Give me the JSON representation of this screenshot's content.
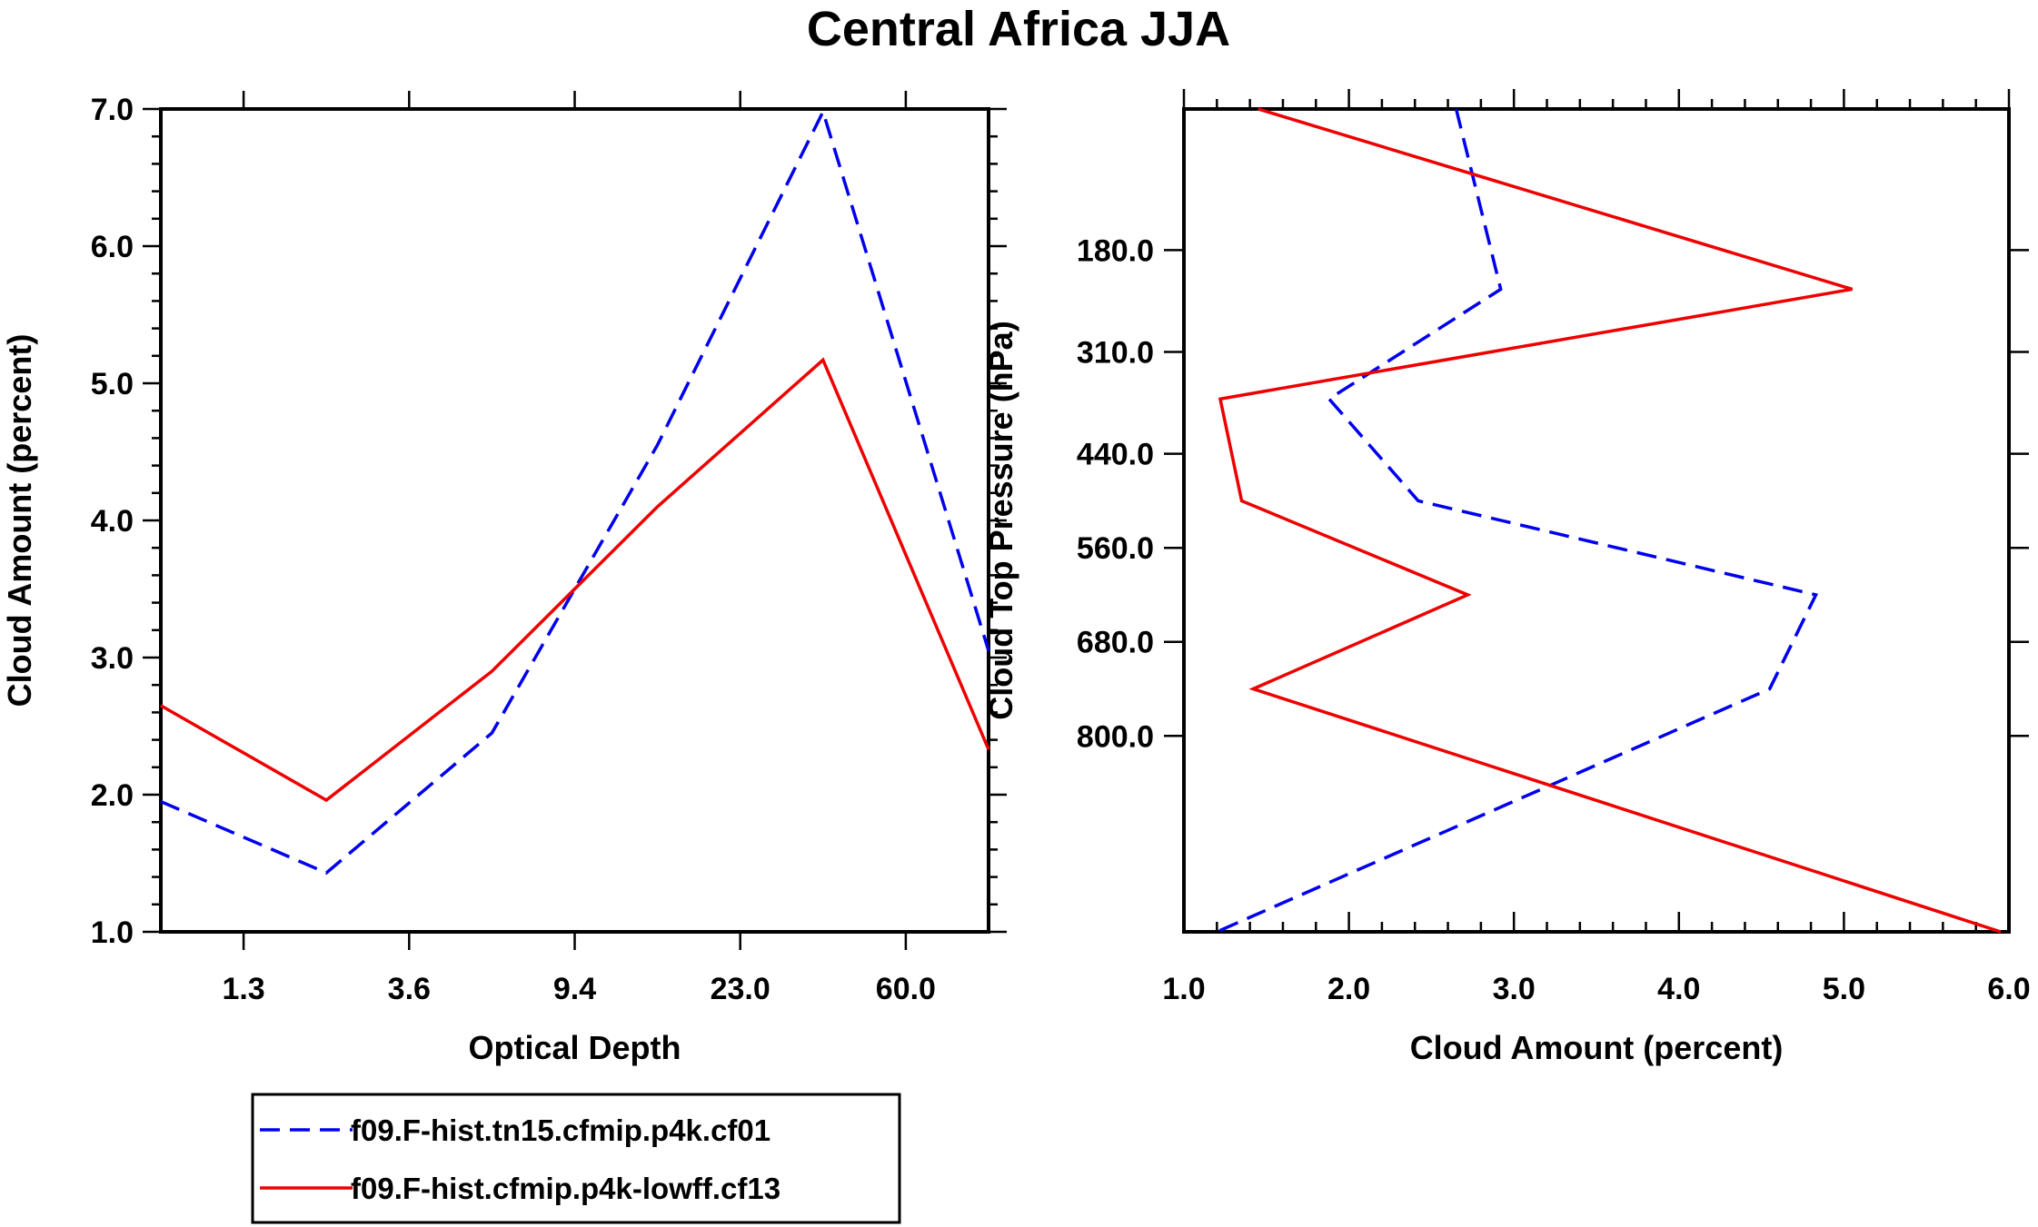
{
  "figure_title": "Central Africa JJA",
  "chart_data": [
    {
      "type": "line",
      "title": "",
      "xlabel": "Optical Depth",
      "ylabel": "Cloud Amount (percent)",
      "x_scale": "category-index",
      "xlim": [
        0.5,
        5.5
      ],
      "ylim": [
        1.0,
        7.0
      ],
      "x_ticks": [
        1,
        2,
        3,
        4,
        5
      ],
      "x_tick_labels": [
        "1.3",
        "3.6",
        "9.4",
        "23.0",
        "60.0"
      ],
      "y_ticks": [
        1.0,
        2.0,
        3.0,
        4.0,
        5.0,
        6.0,
        7.0
      ],
      "y_tick_labels": [
        "1.0",
        "2.0",
        "3.0",
        "4.0",
        "5.0",
        "6.0",
        "7.0"
      ],
      "x": [
        0.5,
        1.5,
        2.5,
        3.5,
        4.5,
        5.5
      ],
      "series": [
        {
          "name": "f09.F-hist.tn15.cfmip.p4k.cf01",
          "color": "#0000ee",
          "dash": "dashed",
          "values": [
            1.95,
            1.43,
            2.45,
            4.55,
            6.98,
            3.05
          ]
        },
        {
          "name": "f09.F-hist.cfmip.p4k-lowff.cf13",
          "color": "#ee0000",
          "dash": "solid",
          "values": [
            2.65,
            1.96,
            2.9,
            4.1,
            5.17,
            2.33
          ]
        }
      ]
    },
    {
      "type": "line",
      "orientation": "vertical-profile",
      "title": "",
      "xlabel": "Cloud Amount (percent)",
      "ylabel": "Cloud Top Pressure (hPa)",
      "xlim": [
        1.0,
        6.0
      ],
      "ylim": [
        1050,
        0
      ],
      "x_ticks": [
        1.0,
        2.0,
        3.0,
        4.0,
        5.0,
        6.0
      ],
      "x_tick_labels": [
        "1.0",
        "2.0",
        "3.0",
        "4.0",
        "5.0",
        "6.0"
      ],
      "y_ticks": [
        180,
        310,
        440,
        560,
        680,
        800
      ],
      "y_tick_labels": [
        "180.0",
        "310.0",
        "440.0",
        "560.0",
        "680.0",
        "800.0"
      ],
      "pressure_levels": [
        0,
        230,
        370,
        500,
        620,
        740,
        1050
      ],
      "series": [
        {
          "name": "f09.F-hist.tn15.cfmip.p4k.cf01",
          "color": "#0000ee",
          "dash": "dashed",
          "values": [
            2.65,
            2.92,
            1.88,
            2.42,
            4.83,
            4.55,
            1.2
          ]
        },
        {
          "name": "f09.F-hist.cfmip.p4k-lowff.cf13",
          "color": "#ee0000",
          "dash": "solid",
          "values": [
            1.45,
            5.05,
            1.22,
            1.35,
            2.72,
            1.42,
            5.95
          ]
        }
      ]
    }
  ],
  "legend": {
    "placement": "bottom-left",
    "entries": [
      {
        "label": "f09.F-hist.tn15.cfmip.p4k.cf01",
        "color": "#0000ee",
        "dash": "dashed"
      },
      {
        "label": "f09.F-hist.cfmip.p4k-lowff.cf13",
        "color": "#ee0000",
        "dash": "solid"
      }
    ]
  }
}
